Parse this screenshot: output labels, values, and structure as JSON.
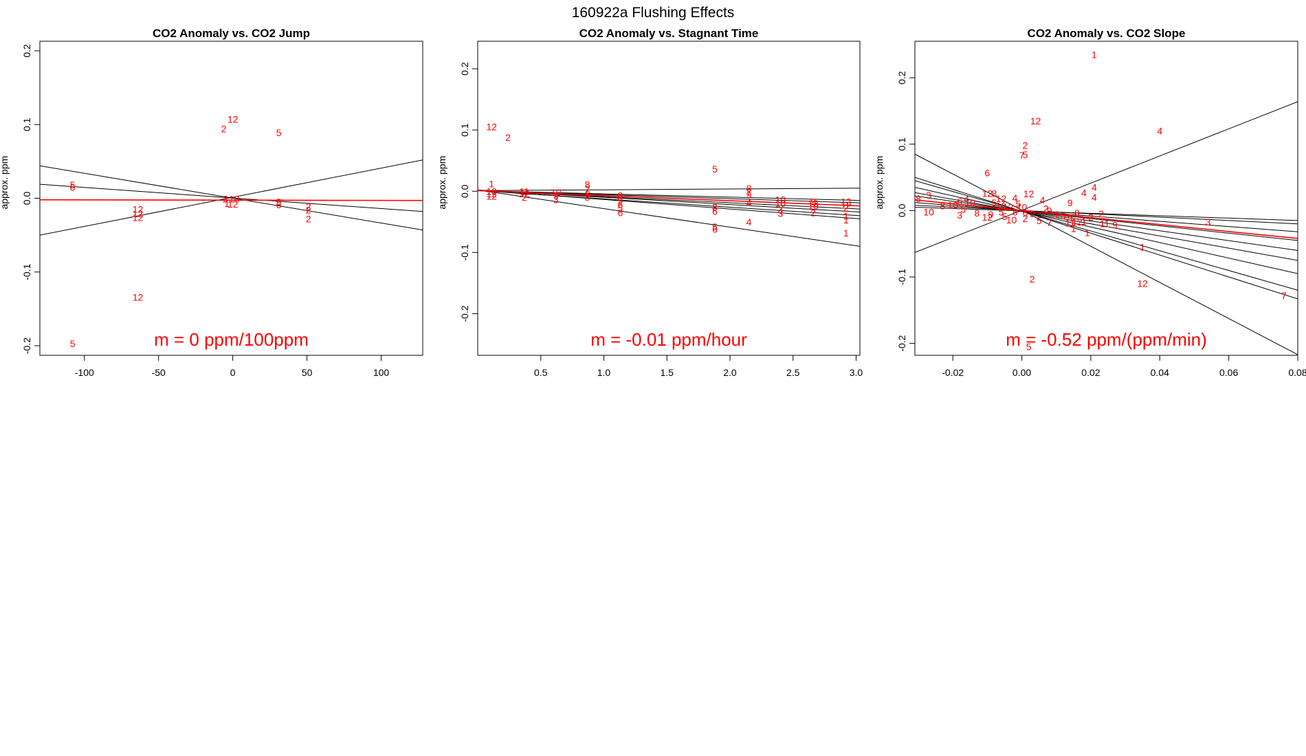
{
  "figure_title": "160922a    Flushing Effects",
  "colors": {
    "points": "#ff0000",
    "fit": "#ff0000",
    "lines": "#000000",
    "axis": "#000000"
  },
  "chart_data": [
    {
      "type": "scatter",
      "title": "CO2 Anomaly vs. CO2 Jump",
      "xlabel": "",
      "ylabel": "approx. ppm",
      "xlim": [
        -130,
        128
      ],
      "ylim": [
        -0.213,
        0.213
      ],
      "xticks": [
        {
          "v": -100,
          "label": "-100"
        },
        {
          "v": -50,
          "label": "-50"
        },
        {
          "v": 0,
          "label": "0"
        },
        {
          "v": 50,
          "label": "50"
        },
        {
          "v": 100,
          "label": "100"
        }
      ],
      "yticks": [
        {
          "v": -0.2,
          "label": "-0.2"
        },
        {
          "v": -0.1,
          "label": "-0.1"
        },
        {
          "v": 0,
          "label": "0.0"
        },
        {
          "v": 0.1,
          "label": "0.1"
        },
        {
          "v": 0.2,
          "label": "0.2"
        }
      ],
      "annotation": "m = 0 ppm/100ppm",
      "fit_line": [
        [
          -130,
          -0.002
        ],
        [
          128,
          -0.003
        ]
      ],
      "lines": [
        [
          [
            -130,
            0.044
          ],
          [
            128,
            -0.043
          ]
        ],
        [
          [
            -130,
            -0.05
          ],
          [
            128,
            0.052
          ]
        ],
        [
          [
            -130,
            0.019
          ],
          [
            128,
            -0.018
          ]
        ]
      ],
      "points": [
        {
          "x": -108,
          "y": 0.018,
          "label": "5"
        },
        {
          "x": -108,
          "y": 0.015,
          "label": "6"
        },
        {
          "x": -108,
          "y": -0.197,
          "label": "5"
        },
        {
          "x": -64,
          "y": -0.015,
          "label": "12"
        },
        {
          "x": -64,
          "y": -0.021,
          "label": "12"
        },
        {
          "x": -64,
          "y": -0.026,
          "label": "12"
        },
        {
          "x": -64,
          "y": -0.134,
          "label": "12"
        },
        {
          "x": -6,
          "y": 0.094,
          "label": "2"
        },
        {
          "x": 0,
          "y": 0.107,
          "label": "12"
        },
        {
          "x": -5,
          "y": -0.001,
          "label": "2"
        },
        {
          "x": 1,
          "y": -0.001,
          "label": "10"
        },
        {
          "x": -4,
          "y": -0.007,
          "label": "1"
        },
        {
          "x": 0,
          "y": -0.008,
          "label": "12"
        },
        {
          "x": 31,
          "y": 0.089,
          "label": "5"
        },
        {
          "x": 31,
          "y": -0.005,
          "label": "5"
        },
        {
          "x": 31,
          "y": -0.009,
          "label": "6"
        },
        {
          "x": 51,
          "y": -0.011,
          "label": "2"
        },
        {
          "x": 51,
          "y": -0.016,
          "label": "2"
        },
        {
          "x": 51,
          "y": -0.028,
          "label": "2"
        }
      ]
    },
    {
      "type": "scatter",
      "title": "CO2 Anomaly vs. Stagnant Time",
      "xlabel": "",
      "ylabel": "approx. ppm",
      "xlim": [
        0.0,
        3.03
      ],
      "ylim": [
        -0.268,
        0.245
      ],
      "xticks": [
        {
          "v": 0.5,
          "label": "0.5"
        },
        {
          "v": 1.0,
          "label": "1.0"
        },
        {
          "v": 1.5,
          "label": "1.5"
        },
        {
          "v": 2.0,
          "label": "2.0"
        },
        {
          "v": 2.5,
          "label": "2.5"
        },
        {
          "v": 3.0,
          "label": "3.0"
        }
      ],
      "yticks": [
        {
          "v": -0.2,
          "label": "-0.2"
        },
        {
          "v": -0.1,
          "label": "-0.1"
        },
        {
          "v": 0,
          "label": "0.0"
        },
        {
          "v": 0.1,
          "label": "0.1"
        },
        {
          "v": 0.2,
          "label": "0.2"
        }
      ],
      "annotation": "m = -0.01 ppm/hour",
      "fit_line": [
        [
          0.0,
          0.001
        ],
        [
          3.03,
          -0.024
        ]
      ],
      "lines": [
        [
          [
            0.0,
            0.001
          ],
          [
            3.03,
            0.005
          ]
        ],
        [
          [
            0.0,
            0.001
          ],
          [
            3.03,
            -0.015
          ]
        ],
        [
          [
            0.0,
            0.001
          ],
          [
            3.03,
            -0.019
          ]
        ],
        [
          [
            0.0,
            0.001
          ],
          [
            3.03,
            -0.029
          ]
        ],
        [
          [
            0.0,
            0.002
          ],
          [
            3.03,
            -0.034
          ]
        ],
        [
          [
            0.0,
            0.001
          ],
          [
            3.03,
            -0.04
          ]
        ],
        [
          [
            0.0,
            0.002
          ],
          [
            3.03,
            -0.045
          ]
        ],
        [
          [
            0.0,
            0.002
          ],
          [
            3.03,
            -0.09
          ]
        ]
      ],
      "points": [
        {
          "x": 0.11,
          "y": 0.105,
          "label": "12"
        },
        {
          "x": 0.24,
          "y": 0.088,
          "label": "2"
        },
        {
          "x": 0.11,
          "y": 0.012,
          "label": "1"
        },
        {
          "x": 0.11,
          "y": 0.0,
          "label": "10"
        },
        {
          "x": 0.11,
          "y": -0.004,
          "label": "12"
        },
        {
          "x": 0.11,
          "y": -0.008,
          "label": "12"
        },
        {
          "x": 0.37,
          "y": 0.0,
          "label": "11"
        },
        {
          "x": 0.37,
          "y": -0.004,
          "label": "12"
        },
        {
          "x": 0.37,
          "y": -0.01,
          "label": "2"
        },
        {
          "x": 0.62,
          "y": -0.002,
          "label": "10"
        },
        {
          "x": 0.62,
          "y": -0.007,
          "label": "9"
        },
        {
          "x": 0.62,
          "y": -0.014,
          "label": "3"
        },
        {
          "x": 0.87,
          "y": 0.011,
          "label": "8"
        },
        {
          "x": 0.87,
          "y": 0.003,
          "label": "7"
        },
        {
          "x": 0.87,
          "y": -0.004,
          "label": "8"
        },
        {
          "x": 0.87,
          "y": -0.01,
          "label": "8"
        },
        {
          "x": 1.13,
          "y": -0.007,
          "label": "8"
        },
        {
          "x": 1.13,
          "y": -0.015,
          "label": "9"
        },
        {
          "x": 1.13,
          "y": -0.022,
          "label": "6"
        },
        {
          "x": 1.13,
          "y": -0.028,
          "label": "5"
        },
        {
          "x": 1.13,
          "y": -0.035,
          "label": "6"
        },
        {
          "x": 1.88,
          "y": 0.036,
          "label": "5"
        },
        {
          "x": 1.88,
          "y": -0.026,
          "label": "8"
        },
        {
          "x": 1.88,
          "y": -0.033,
          "label": "6"
        },
        {
          "x": 1.88,
          "y": -0.058,
          "label": "5"
        },
        {
          "x": 1.88,
          "y": -0.062,
          "label": "6"
        },
        {
          "x": 2.15,
          "y": 0.005,
          "label": "8"
        },
        {
          "x": 2.15,
          "y": -0.002,
          "label": "7"
        },
        {
          "x": 2.15,
          "y": -0.006,
          "label": "9"
        },
        {
          "x": 2.15,
          "y": -0.019,
          "label": "4"
        },
        {
          "x": 2.15,
          "y": -0.05,
          "label": "4"
        },
        {
          "x": 2.4,
          "y": -0.014,
          "label": "10"
        },
        {
          "x": 2.4,
          "y": -0.02,
          "label": "10"
        },
        {
          "x": 2.4,
          "y": -0.032,
          "label": "4"
        },
        {
          "x": 2.4,
          "y": -0.036,
          "label": "3"
        },
        {
          "x": 2.66,
          "y": -0.017,
          "label": "9"
        },
        {
          "x": 2.66,
          "y": -0.02,
          "label": "12"
        },
        {
          "x": 2.66,
          "y": -0.024,
          "label": "10"
        },
        {
          "x": 2.66,
          "y": -0.035,
          "label": "2"
        },
        {
          "x": 2.92,
          "y": -0.017,
          "label": "12"
        },
        {
          "x": 2.92,
          "y": -0.023,
          "label": "12"
        },
        {
          "x": 2.92,
          "y": -0.027,
          "label": "2"
        },
        {
          "x": 2.92,
          "y": -0.04,
          "label": "1"
        },
        {
          "x": 2.92,
          "y": -0.047,
          "label": "1"
        },
        {
          "x": 2.92,
          "y": -0.068,
          "label": "1"
        }
      ]
    },
    {
      "type": "scatter",
      "title": "CO2 Anomaly vs. CO2 Slope",
      "xlabel": "",
      "ylabel": "approx. ppm",
      "xlim": [
        -0.031,
        0.08
      ],
      "ylim": [
        -0.218,
        0.255
      ],
      "xticks": [
        {
          "v": -0.02,
          "label": "-0.02"
        },
        {
          "v": 0.0,
          "label": "0.00"
        },
        {
          "v": 0.02,
          "label": "0.02"
        },
        {
          "v": 0.04,
          "label": "0.04"
        },
        {
          "v": 0.06,
          "label": "0.06"
        },
        {
          "v": 0.08,
          "label": "0.08"
        }
      ],
      "yticks": [
        {
          "v": -0.2,
          "label": "-0.2"
        },
        {
          "v": -0.1,
          "label": "-0.1"
        },
        {
          "v": 0,
          "label": "0.0"
        },
        {
          "v": 0.1,
          "label": "0.1"
        },
        {
          "v": 0.2,
          "label": "0.2"
        }
      ],
      "annotation": "m = -0.52 ppm/(ppm/min)",
      "fit_line": [
        [
          -0.031,
          0.016
        ],
        [
          0.08,
          -0.042
        ]
      ],
      "lines": [
        [
          [
            -0.031,
            -0.063
          ],
          [
            0.08,
            0.164
          ]
        ],
        [
          [
            -0.031,
            0.085
          ],
          [
            0.08,
            -0.217
          ]
        ],
        [
          [
            -0.031,
            0.05
          ],
          [
            0.08,
            -0.133
          ]
        ],
        [
          [
            -0.031,
            0.045
          ],
          [
            0.08,
            -0.12
          ]
        ],
        [
          [
            -0.031,
            0.035
          ],
          [
            0.08,
            -0.095
          ]
        ],
        [
          [
            -0.031,
            0.027
          ],
          [
            0.08,
            -0.075
          ]
        ],
        [
          [
            -0.031,
            0.022
          ],
          [
            0.08,
            -0.06
          ]
        ],
        [
          [
            -0.031,
            0.016
          ],
          [
            0.08,
            -0.045
          ]
        ],
        [
          [
            -0.031,
            0.012
          ],
          [
            0.08,
            -0.032
          ]
        ],
        [
          [
            -0.031,
            0.008
          ],
          [
            0.08,
            -0.02
          ]
        ],
        [
          [
            -0.031,
            0.005
          ],
          [
            0.08,
            -0.015
          ]
        ]
      ],
      "points": [
        {
          "x": 0.021,
          "y": 0.235,
          "label": "1"
        },
        {
          "x": 0.004,
          "y": 0.135,
          "label": "12"
        },
        {
          "x": 0.04,
          "y": 0.12,
          "label": "4"
        },
        {
          "x": 0.001,
          "y": 0.098,
          "label": "2"
        },
        {
          "x": 0.0,
          "y": 0.083,
          "label": "7"
        },
        {
          "x": 0.001,
          "y": 0.084,
          "label": "5"
        },
        {
          "x": -0.01,
          "y": 0.057,
          "label": "6"
        },
        {
          "x": -0.01,
          "y": 0.026,
          "label": "12"
        },
        {
          "x": -0.008,
          "y": 0.026,
          "label": "8"
        },
        {
          "x": -0.006,
          "y": 0.018,
          "label": "12"
        },
        {
          "x": 0.002,
          "y": 0.025,
          "label": "12"
        },
        {
          "x": -0.002,
          "y": 0.019,
          "label": "4"
        },
        {
          "x": -0.027,
          "y": 0.023,
          "label": "3"
        },
        {
          "x": -0.03,
          "y": 0.018,
          "label": "8"
        },
        {
          "x": -0.016,
          "y": 0.018,
          "label": "4"
        },
        {
          "x": -0.018,
          "y": 0.014,
          "label": "6"
        },
        {
          "x": -0.015,
          "y": 0.012,
          "label": "10"
        },
        {
          "x": -0.02,
          "y": 0.008,
          "label": "10"
        },
        {
          "x": -0.023,
          "y": 0.007,
          "label": "8"
        },
        {
          "x": -0.027,
          "y": -0.002,
          "label": "10"
        },
        {
          "x": -0.018,
          "y": -0.007,
          "label": "3"
        },
        {
          "x": -0.017,
          "y": 0.002,
          "label": "5"
        },
        {
          "x": -0.013,
          "y": -0.004,
          "label": "8"
        },
        {
          "x": -0.01,
          "y": -0.01,
          "label": "12"
        },
        {
          "x": -0.009,
          "y": -0.006,
          "label": "9"
        },
        {
          "x": -0.008,
          "y": 0.012,
          "label": "5"
        },
        {
          "x": -0.006,
          "y": 0.007,
          "label": "10"
        },
        {
          "x": -0.004,
          "y": 0.005,
          "label": "12"
        },
        {
          "x": -0.006,
          "y": -0.002,
          "label": "5"
        },
        {
          "x": -0.005,
          "y": -0.009,
          "label": "5"
        },
        {
          "x": -0.003,
          "y": -0.014,
          "label": "10"
        },
        {
          "x": -0.001,
          "y": 0.01,
          "label": "5"
        },
        {
          "x": 0.0,
          "y": 0.005,
          "label": "10"
        },
        {
          "x": -0.002,
          "y": -0.002,
          "label": "8"
        },
        {
          "x": 0.001,
          "y": -0.003,
          "label": "6"
        },
        {
          "x": 0.003,
          "y": -0.005,
          "label": "9"
        },
        {
          "x": 0.006,
          "y": 0.016,
          "label": "4"
        },
        {
          "x": 0.007,
          "y": 0.003,
          "label": "2"
        },
        {
          "x": 0.008,
          "y": 0.0,
          "label": "9"
        },
        {
          "x": 0.001,
          "y": -0.012,
          "label": "2"
        },
        {
          "x": 0.005,
          "y": -0.015,
          "label": "5"
        },
        {
          "x": 0.008,
          "y": -0.018,
          "label": "7"
        },
        {
          "x": 0.01,
          "y": -0.006,
          "label": "1"
        },
        {
          "x": 0.012,
          "y": -0.008,
          "label": "5"
        },
        {
          "x": 0.014,
          "y": -0.01,
          "label": "5"
        },
        {
          "x": 0.016,
          "y": -0.004,
          "label": "8"
        },
        {
          "x": 0.014,
          "y": 0.012,
          "label": "9"
        },
        {
          "x": 0.014,
          "y": -0.019,
          "label": "11"
        },
        {
          "x": 0.016,
          "y": -0.017,
          "label": "12"
        },
        {
          "x": 0.018,
          "y": -0.016,
          "label": "1"
        },
        {
          "x": 0.015,
          "y": -0.027,
          "label": "1"
        },
        {
          "x": 0.019,
          "y": -0.033,
          "label": "1"
        },
        {
          "x": 0.02,
          "y": -0.01,
          "label": "2"
        },
        {
          "x": 0.023,
          "y": -0.005,
          "label": "2"
        },
        {
          "x": 0.024,
          "y": -0.02,
          "label": "11"
        },
        {
          "x": 0.027,
          "y": -0.022,
          "label": "9"
        },
        {
          "x": 0.018,
          "y": 0.027,
          "label": "4"
        },
        {
          "x": 0.021,
          "y": 0.035,
          "label": "4"
        },
        {
          "x": 0.021,
          "y": 0.02,
          "label": "4"
        },
        {
          "x": 0.054,
          "y": -0.017,
          "label": "3"
        },
        {
          "x": 0.035,
          "y": -0.055,
          "label": "1"
        },
        {
          "x": 0.035,
          "y": -0.11,
          "label": "12"
        },
        {
          "x": 0.003,
          "y": -0.103,
          "label": "2"
        },
        {
          "x": 0.002,
          "y": -0.205,
          "label": "5"
        },
        {
          "x": 0.076,
          "y": -0.128,
          "label": "7"
        }
      ]
    }
  ]
}
